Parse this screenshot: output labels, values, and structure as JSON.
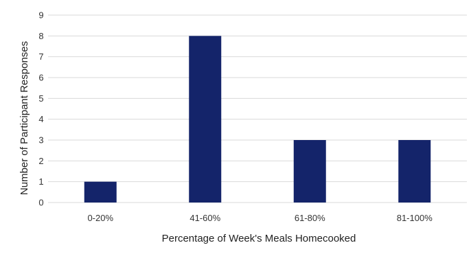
{
  "chart_data": {
    "type": "bar",
    "categories": [
      "0-20%",
      "41-60%",
      "61-80%",
      "81-100%"
    ],
    "values": [
      1,
      8,
      3,
      3
    ],
    "title": "",
    "xlabel": "Percentage of Week's Meals Homecooked",
    "ylabel": "Number of Participant Responses",
    "ylim": [
      0,
      9
    ],
    "yticks": [
      0,
      1,
      2,
      3,
      4,
      5,
      6,
      7,
      8,
      9
    ],
    "grid": true,
    "legend": "none",
    "colors": {
      "bar": "#14246a",
      "grid": "#d9d9d9",
      "text": "#333333"
    }
  }
}
